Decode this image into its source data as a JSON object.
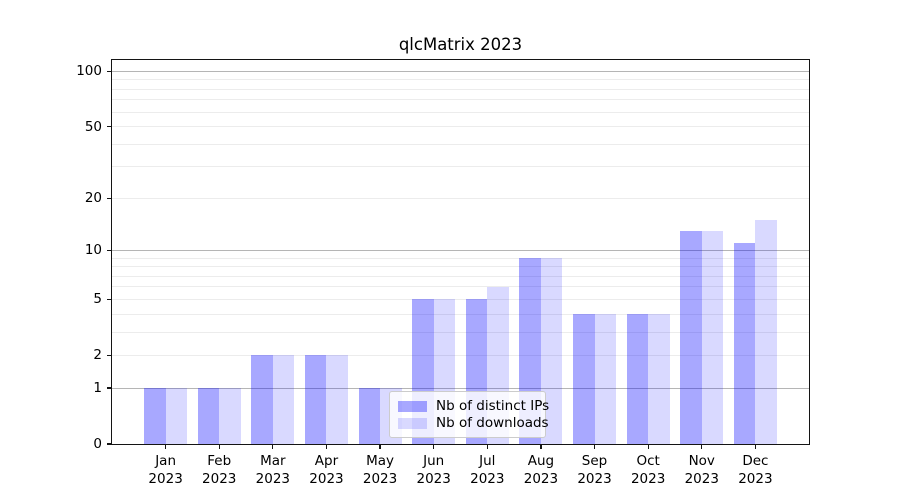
{
  "chart_data": {
    "type": "bar",
    "title": "qlcMatrix 2023",
    "categories": [
      "Jan 2023",
      "Feb 2023",
      "Mar 2023",
      "Apr 2023",
      "May 2023",
      "Jun 2023",
      "Jul 2023",
      "Aug 2023",
      "Sep 2023",
      "Oct 2023",
      "Nov 2023",
      "Dec 2023"
    ],
    "series": [
      {
        "name": "Nb of distinct IPs",
        "color": "rgba(0,0,255,0.34)",
        "values": [
          1,
          1,
          2,
          2,
          1,
          5,
          5,
          9,
          4,
          4,
          13,
          11
        ]
      },
      {
        "name": "Nb of downloads",
        "color": "rgba(0,0,255,0.15)",
        "values": [
          1,
          1,
          2,
          2,
          1,
          5,
          6,
          9,
          4,
          4,
          13,
          15
        ]
      }
    ],
    "xlabel": "",
    "ylabel": "",
    "y_scale": "log10(1+x)",
    "y_tick_values": [
      0,
      1,
      2,
      5,
      10,
      20,
      50,
      100
    ],
    "y_tick_labels": [
      "0",
      "1",
      "2",
      "5",
      "10",
      "20",
      "50",
      "100"
    ],
    "major_gridline_values": [
      1,
      10,
      100
    ],
    "minor_gridline_values": [
      2,
      3,
      4,
      5,
      6,
      7,
      8,
      9,
      20,
      30,
      40,
      50,
      60,
      70,
      80,
      90
    ],
    "ylim": [
      0,
      114
    ],
    "grid": true,
    "legend_position": "lower center-left inside plot",
    "colors": {
      "major_grid": "#b5b5b5",
      "minor_grid": "#ececec",
      "axis": "#141414",
      "background": "#ffffff"
    }
  }
}
